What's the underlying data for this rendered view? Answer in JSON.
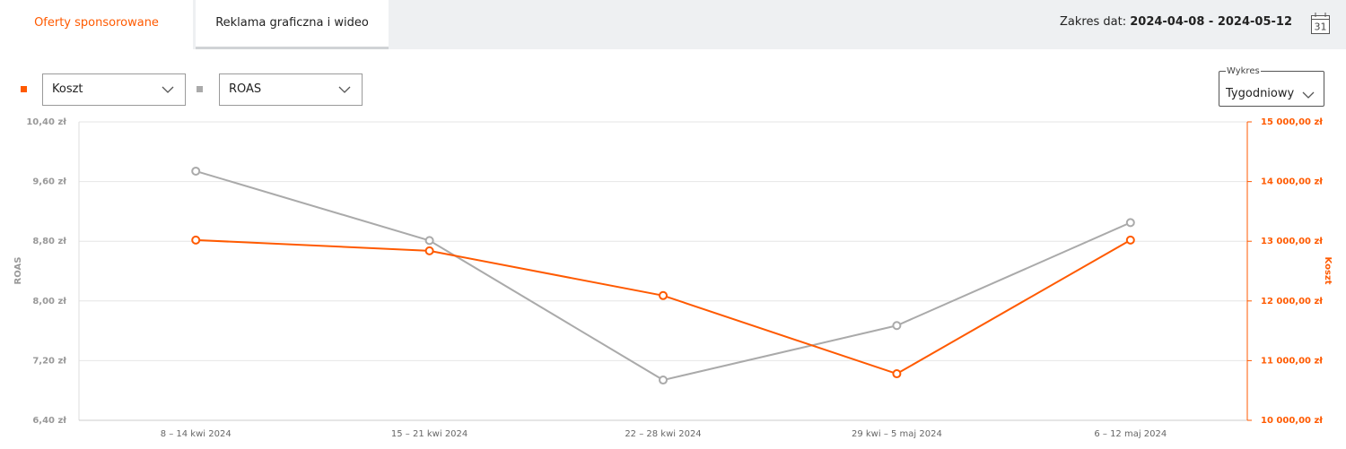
{
  "tabs": [
    "Oferty sponsorowane",
    "Reklama graficzna i wideo"
  ],
  "date_range": {
    "label": "Zakres dat:",
    "value": "2024-04-08 - 2024-05-12"
  },
  "calendar_day": "31",
  "chart_control": {
    "legend": "Wykres",
    "value": "Tygodniowy"
  },
  "chart_data": {
    "type": "line",
    "categories": [
      "8 – 14 kwi 2024",
      "15 – 21 kwi 2024",
      "22 – 28 kwi 2024",
      "29 kwi – 5 maj 2024",
      "6 – 12 maj 2024"
    ],
    "ylabel": "ROAS",
    "y2label": "Koszt",
    "ylim": [
      6.4,
      10.4
    ],
    "yticks": [
      {
        "value": 6.4,
        "label": "6,40 zł"
      },
      {
        "value": 7.2,
        "label": "7,20 zł"
      },
      {
        "value": 8.0,
        "label": "8,00 zł"
      },
      {
        "value": 8.8,
        "label": "8,80 zł"
      },
      {
        "value": 9.6,
        "label": "9,60 zł"
      },
      {
        "value": 10.4,
        "label": "10,40 zł"
      }
    ],
    "y2lim": [
      10000,
      15000
    ],
    "y2ticks": [
      {
        "value": 10000,
        "label": "10 000,00 zł"
      },
      {
        "value": 11000,
        "label": "11 000,00 zł"
      },
      {
        "value": 12000,
        "label": "12 000,00 zł"
      },
      {
        "value": 13000,
        "label": "13 000,00 zł"
      },
      {
        "value": 14000,
        "label": "14 000,00 zł"
      },
      {
        "value": 15000,
        "label": "15 000,00 zł"
      }
    ],
    "grid": true,
    "series": [
      {
        "name": "Koszt",
        "color": "#ff5a00",
        "axis": "y2",
        "values": [
          13020,
          12840,
          12090,
          10780,
          13020
        ]
      },
      {
        "name": "ROAS",
        "color": "#aaaaaa",
        "values": [
          9.74,
          8.81,
          6.94,
          7.67,
          9.05
        ]
      }
    ]
  }
}
